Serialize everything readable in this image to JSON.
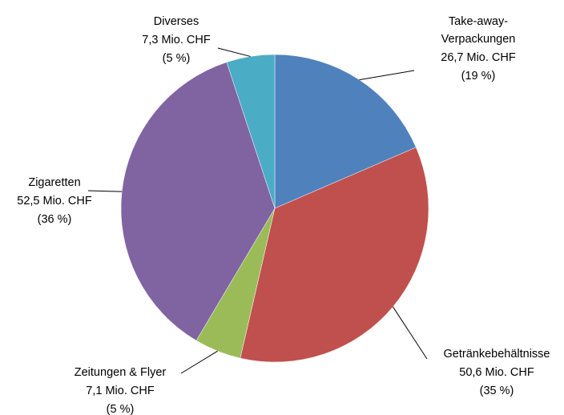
{
  "chart_data": {
    "type": "pie",
    "categories": [
      "Take-away-Verpackungen",
      "Getränkebehältnisse",
      "Zeitungen & Flyer",
      "Zigaretten",
      "Diverses"
    ],
    "values": [
      26.7,
      50.6,
      7.1,
      52.5,
      7.3
    ],
    "value_labels": [
      "26,7 Mio. CHF",
      "50,6 Mio. CHF",
      "7,1 Mio. CHF",
      "52,5 Mio. CHF",
      "7,3 Mio. CHF"
    ],
    "percent_labels": [
      "(19 %)",
      "(35 %)",
      "(5 %)",
      "(36 %)",
      "(5 %)"
    ],
    "colors": [
      "#4f81bd",
      "#c0504d",
      "#9bbb59",
      "#8064a2",
      "#4bacc6"
    ]
  }
}
